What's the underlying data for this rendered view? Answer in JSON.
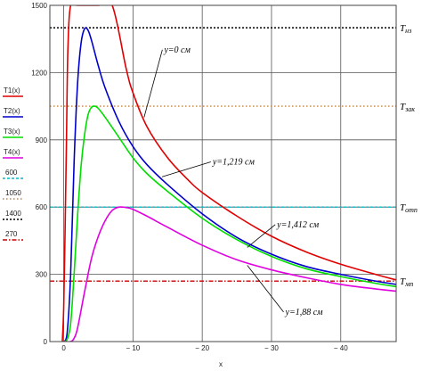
{
  "chart_data": {
    "type": "line",
    "xlabel": "x",
    "xlim": [
      2,
      -48
    ],
    "ylim": [
      0,
      1500
    ],
    "grid": true,
    "x_ticks": [
      {
        "value": 0,
        "label": "0"
      },
      {
        "value": -10,
        "label": "− 10"
      },
      {
        "value": -20,
        "label": "− 20"
      },
      {
        "value": -30,
        "label": "− 30"
      },
      {
        "value": -40,
        "label": "− 40"
      }
    ],
    "y_ticks": [
      {
        "value": 0,
        "label": "0"
      },
      {
        "value": 300,
        "label": "300"
      },
      {
        "value": 600,
        "label": "600"
      },
      {
        "value": 900,
        "label": "900"
      },
      {
        "value": 1200,
        "label": "1200"
      },
      {
        "value": 1500,
        "label": "1500"
      }
    ],
    "series": [
      {
        "name": "T1(x)",
        "color": "#e00000",
        "x": [
          0.2,
          0.0,
          -0.2,
          -0.4,
          -0.6,
          -1,
          -2,
          -5,
          -7,
          -9,
          -10,
          -12,
          -15,
          -18,
          -20,
          -25,
          -30,
          -35,
          -40,
          -45,
          -48
        ],
        "y": [
          0,
          150,
          500,
          900,
          1300,
          1500,
          1500,
          1500,
          1500,
          1220,
          1110,
          960,
          820,
          720,
          665,
          560,
          470,
          400,
          345,
          300,
          275
        ]
      },
      {
        "name": "T2(x)",
        "color": "#0000cc",
        "x": [
          0,
          -0.5,
          -1,
          -1.5,
          -2,
          -2.5,
          -3,
          -3.5,
          -4,
          -5,
          -6,
          -8,
          -10,
          -12,
          -15,
          -20,
          -25,
          -30,
          -35,
          -40,
          -45,
          -48
        ],
        "y": [
          0,
          40,
          300,
          800,
          1150,
          1330,
          1395,
          1390,
          1345,
          1230,
          1130,
          980,
          870,
          790,
          700,
          570,
          465,
          390,
          335,
          300,
          270,
          255
        ]
      },
      {
        "name": "T3(x)",
        "color": "#00dd00",
        "x": [
          0,
          -0.5,
          -1,
          -1.5,
          -2,
          -2.5,
          -3,
          -3.5,
          -4,
          -4.5,
          -5,
          -6,
          -8,
          -10,
          -12,
          -15,
          -20,
          -25,
          -30,
          -35,
          -40,
          -45,
          -48
        ],
        "y": [
          0,
          10,
          80,
          300,
          560,
          780,
          920,
          1010,
          1045,
          1050,
          1040,
          1000,
          910,
          820,
          750,
          670,
          550,
          455,
          380,
          325,
          290,
          260,
          245
        ]
      },
      {
        "name": "T4(x)",
        "color": "#e000e0",
        "x": [
          0,
          -1,
          -1.5,
          -2,
          -3,
          -4,
          -5,
          -6,
          -7,
          -8,
          -9,
          -10,
          -12,
          -15,
          -20,
          -25,
          -30,
          -35,
          -40,
          -45,
          -48
        ],
        "y": [
          0,
          0,
          15,
          60,
          220,
          370,
          470,
          540,
          585,
          600,
          598,
          590,
          560,
          510,
          430,
          365,
          320,
          285,
          255,
          235,
          225
        ]
      }
    ],
    "reference_lines": [
      {
        "name": "600",
        "y": 600,
        "color": "#00bbcc",
        "dash": "3,2",
        "label": "T",
        "sub": "отп"
      },
      {
        "name": "1050",
        "y": 1050,
        "color": "#c08040",
        "dash": "1.5,2.5",
        "label": "T",
        "sub": "зак"
      },
      {
        "name": "1400",
        "y": 1400,
        "color": "#000000",
        "dash": "2,2",
        "label": "T",
        "sub": "нз"
      },
      {
        "name": "270",
        "y": 270,
        "color": "#cc0000",
        "dash": "5,2,1.5,2",
        "label": "T",
        "sub": "мп"
      }
    ],
    "annotations": [
      {
        "text": "y=0 см",
        "x": -14.5,
        "y": 1290,
        "point_x": -11.6,
        "point_y": 1000
      },
      {
        "text": "y=1,219 см",
        "x": -21.5,
        "y": 790,
        "point_x": -14.2,
        "point_y": 735
      },
      {
        "text": "y=1,412 см",
        "x": -30.8,
        "y": 510,
        "point_x": -26.5,
        "point_y": 420
      },
      {
        "text": "y=1,88 см",
        "x": -32,
        "y": 120,
        "point_x": -26.5,
        "point_y": 340
      }
    ]
  }
}
